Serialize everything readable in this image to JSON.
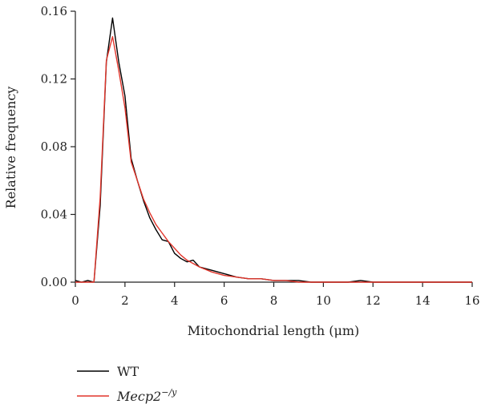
{
  "chart_data": {
    "type": "line",
    "title": "",
    "xlabel": "Mitochondrial length (μm)",
    "ylabel": "Relative frequency",
    "xlim": [
      0,
      16
    ],
    "ylim": [
      0,
      0.16
    ],
    "xticks": [
      0,
      2,
      4,
      6,
      8,
      10,
      12,
      14,
      16
    ],
    "xtick_labels": [
      "0",
      "2",
      "4",
      "6",
      "8",
      "10",
      "12",
      "14",
      "16"
    ],
    "yticks": [
      0,
      0.04,
      0.08,
      0.12,
      0.16
    ],
    "ytick_labels": [
      "0.00",
      "0.04",
      "0.08",
      "0.12",
      "0.16"
    ],
    "grid": false,
    "legend_position": "bottom-left",
    "series": [
      {
        "name": "WT",
        "color": "#000000",
        "x": [
          0,
          0.25,
          0.5,
          0.75,
          1.0,
          1.25,
          1.5,
          1.75,
          2.0,
          2.25,
          2.5,
          2.75,
          3.0,
          3.25,
          3.5,
          3.75,
          4.0,
          4.25,
          4.5,
          4.75,
          5.0,
          5.5,
          6.0,
          6.5,
          7.0,
          7.5,
          8.0,
          8.5,
          9.0,
          9.5,
          10.0,
          10.5,
          11.0,
          11.5,
          12.0,
          13.0,
          14.0,
          15.0,
          16.0
        ],
        "y": [
          0.001,
          0.0,
          0.001,
          0.0,
          0.045,
          0.13,
          0.156,
          0.13,
          0.11,
          0.073,
          0.06,
          0.048,
          0.038,
          0.031,
          0.025,
          0.024,
          0.017,
          0.014,
          0.012,
          0.013,
          0.009,
          0.007,
          0.005,
          0.003,
          0.002,
          0.002,
          0.001,
          0.001,
          0.001,
          0.0,
          0.0,
          0.0,
          0.0,
          0.001,
          0.0,
          0.0,
          0.0,
          0.0,
          0.0
        ]
      },
      {
        "name": "Mecp2",
        "name_sup": "−/y",
        "color": "#e2352b",
        "x": [
          0,
          0.25,
          0.5,
          0.75,
          1.0,
          1.25,
          1.5,
          1.75,
          2.0,
          2.25,
          2.5,
          2.75,
          3.0,
          3.25,
          3.5,
          3.75,
          4.0,
          4.25,
          4.5,
          4.75,
          5.0,
          5.5,
          6.0,
          6.5,
          7.0,
          7.5,
          8.0,
          8.5,
          9.0,
          9.5,
          10.0,
          10.5,
          11.0,
          11.5,
          12.0,
          13.0,
          14.0,
          15.0,
          16.0
        ],
        "y": [
          0.0,
          0.0,
          0.0,
          0.0,
          0.05,
          0.131,
          0.145,
          0.125,
          0.103,
          0.071,
          0.06,
          0.049,
          0.041,
          0.034,
          0.029,
          0.024,
          0.02,
          0.016,
          0.013,
          0.011,
          0.009,
          0.006,
          0.004,
          0.003,
          0.002,
          0.002,
          0.001,
          0.001,
          0.0,
          0.0,
          0.0,
          0.0,
          0.0,
          0.0,
          0.0,
          0.0,
          0.0,
          0.0,
          0.0
        ]
      }
    ]
  }
}
